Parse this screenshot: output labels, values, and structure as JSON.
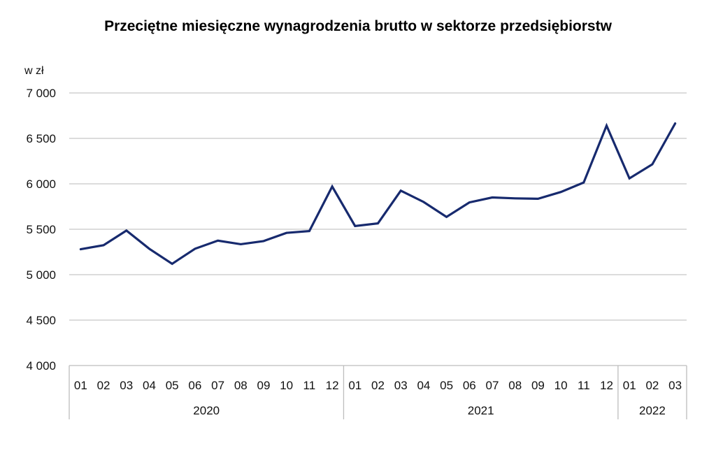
{
  "chart_data": {
    "type": "line",
    "title": "Przeciętne miesięczne wynagrodzenia brutto w sektorze przedsiębiorstw",
    "ylabel": "w zł",
    "ylim": [
      4000,
      7000
    ],
    "yticks": [
      4000,
      4500,
      5000,
      5500,
      6000,
      6500,
      7000
    ],
    "ytick_labels": [
      "4 000",
      "4 500",
      "5 000",
      "5 500",
      "6 000",
      "6 500",
      "7 000"
    ],
    "grid": true,
    "line_color": "#172a6e",
    "categories": [
      "01",
      "02",
      "03",
      "04",
      "05",
      "06",
      "07",
      "08",
      "09",
      "10",
      "11",
      "12",
      "01",
      "02",
      "03",
      "04",
      "05",
      "06",
      "07",
      "08",
      "09",
      "10",
      "11",
      "12",
      "01",
      "02",
      "03"
    ],
    "groups": [
      {
        "label": "2020",
        "count": 12
      },
      {
        "label": "2021",
        "count": 12
      },
      {
        "label": "2022",
        "count": 3
      }
    ],
    "values": [
      5280,
      5325,
      5485,
      5285,
      5120,
      5285,
      5375,
      5335,
      5370,
      5460,
      5480,
      5970,
      5535,
      5565,
      5925,
      5800,
      5635,
      5795,
      5850,
      5840,
      5835,
      5910,
      6015,
      6640,
      6060,
      6215,
      6665
    ]
  }
}
